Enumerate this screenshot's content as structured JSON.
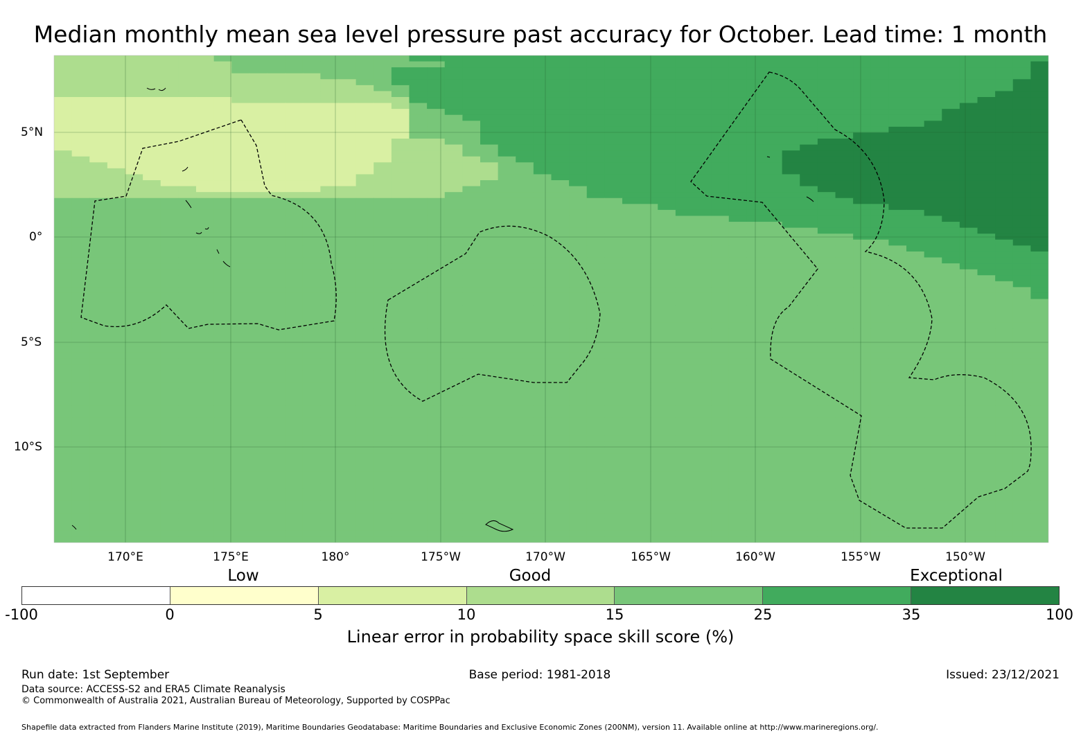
{
  "title": "Median monthly mean sea level pressure past accuracy for October. Lead time: 1 month",
  "map": {
    "lon_labels": [
      "170°E",
      "175°E",
      "180°",
      "175°W",
      "170°W",
      "165°W",
      "160°W",
      "155°W",
      "150°W"
    ],
    "lat_labels": [
      "5°N",
      "0°",
      "5°S",
      "10°S"
    ],
    "palette": {
      "0": "#ffffff",
      "1": "#ffffcc",
      "2": "#d9f0a3",
      "3": "#addd8e",
      "4": "#78c679",
      "5": "#41ab5d",
      "6": "#238443"
    },
    "grid_rows": [
      "33333333344444444444555555555555555555555555555555555555",
      "33333333334444444444445555555555555555555555555555555556",
      "33333333334444444445555555555555555555555555555555555556",
      "33333333333333344445555555555555555555555555555555555556",
      "33333333333333333445555555555555555555555555555555555566",
      "33333333333333333344555555555555555555555555555555555566",
      "33333333333333333334555555555555555555555555555555555666",
      "22222222223333333333555555555555555555555555555555556666",
      "22222222222222222223455555555555555555555555555555566666",
      "22222222222222222222445555555555555555555555555555666666",
      "22222222222222222222444555555555555555555555555555666666",
      "22222222222222222222444455555555555555555555555556666666",
      "22222222222222222222444455555555555555555555555666666666",
      "22222222222222222222444455555555555555555555566666666666",
      "22222222222222222223334455555555555555555556666666666666",
      "22222222222222222223333445555555555555555566666666666666",
      "32222222222222222223333445555555555555555666666666666666",
      "33222222222222222223333344555555555555555666666666666666",
      "33322222222222222233333334455555555555555666666666666666",
      "33332222222222222233333334455555555555555666666666666666",
      "33333222222222222333333334445555555555555566666666666666",
      "33333322222222222333333344444555555555555566666666666666",
      "33333333222222233333333444444455555555555556666666666666",
      "33333333333333333333334444444455555555555555666666666666",
      "44444444444444444444444444444444555555555555566666666666",
      "44444444444444444444444444444444445555555555555666666666",
      "44444444444444444444444444444444444555555555555556666666",
      "44444444444444444444444444444444444444555555555555666666",
      "44444444444444444444444444444444444444444555555555566666",
      "44444444444444444444444444444444444444444445555555556666",
      "44444444444444444444444444444444444444444444455555555666",
      "44444444444444444444444444444444444444444444444555555566",
      "44444444444444444444444444444444444444444444444455555556",
      "44444444444444444444444444444444444444444444444445555555",
      "44444444444444444444444444444444444444444444444444555555",
      "44444444444444444444444444444444444444444444444444455555",
      "44444444444444444444444444444444444444444444444444445555",
      "44444444444444444444444444444444444444444444444444444555",
      "44444444444444444444444444444444444444444444444444444455",
      "44444444444444444444444444444444444444444444444444444445",
      "44444444444444444444444444444444444444444444444444444445",
      "44444444444444444444444444444444444444444444444444444444",
      "44444444444444444444444444444444444444444444444444444444",
      "44444444444444444444444444444444444444444444444444444444",
      "44444444444444444444444444444444444444444444444444444444",
      "44444444444444444444444444444444444444444444444444444444",
      "44444444444444444444444444444444444444444444444444444444",
      "44444444444444444444444444444444444444444444444444444444",
      "44444444444444444444444444444444444444444444444444444444",
      "44444444444444444444444444444444444444444444444444444444",
      "44444444444444444444444444444444444444444444444444444444",
      "44444444444444444444444444444444444444444444444444444444",
      "44444444444444444444444444444444444444444444444444444444",
      "44444444444444444444444444444444444444444444444444444444",
      "44444444444444444444444444444444444444444444444444444444",
      "44444444444444444444444444444444444444444444444444444444",
      "44444444444444444444444444444444444444444444444444444444",
      "44444444444444444444444444444444444444444444444444444444",
      "44444444444444444444444444444444444444444444444444444444",
      "44444444444444444444444444444444444444444444444444444444",
      "44444444444444444444444444444444444444444444444444444444",
      "44444444444444444444444444444444444444444444444444444444",
      "44444444444444444444444444444444444444444444444444444444",
      "44444444444444444444444444444444444444444444444444444444",
      "44444444444444444444444444444444444444444444444444444444",
      "44444444444444444444444444444444444444444444444444444444",
      "44444444444444444444444444444444444444444444444444444444",
      "44444444444444444444444444444444444444444444444444444444",
      "44444444444444444444444444444444444444444444444444444444",
      "44444444444444444444444444444444444444444444444444444444",
      "44444444444444444444444444444444444444444444444444444444",
      "44444444444444444444444444444444444444444444444444444444",
      "44444444444444444444444444444444444444444444444444444444",
      "44444444444444444444444444444444444444444444444444444444",
      "44444444444444444444444444444444444444444444444444444444",
      "44444444444444444444444444444444444444444444444444444444",
      "44444444444444444444444444444444444444444444444444444444",
      "44444444444444444444444444444444444444444444444444444444",
      "44444444444444444444444444444444444444444444444444444444",
      "44444444444444444444444444444444444444444444444444444444",
      "44444444444444444444444444444444444444444444444444444444",
      "44444444444444444444444444444444444444444444444444444444"
    ]
  },
  "legend": {
    "categories": [
      "Low",
      "Good",
      "Exceptional"
    ],
    "ticks": [
      "-100",
      "0",
      "5",
      "10",
      "15",
      "25",
      "35",
      "100"
    ],
    "colors": [
      "#ffffff",
      "#ffffcc",
      "#d9f0a3",
      "#addd8e",
      "#78c679",
      "#41ab5d",
      "#238443"
    ],
    "title": "Linear error in probability space skill score (%)"
  },
  "footer": {
    "run_date": "Run date: 1st September",
    "base_period": "Base period: 1981-2018",
    "issued": "Issued: 23/12/2021",
    "data_source": "Data source: ACCESS-S2 and ERA5 Climate Reanalysis",
    "copyright": "© Commonwealth of Australia 2021, Australian Bureau of Meteorology, Supported by COSPPac",
    "shapefile": "Shapefile data extracted from Flanders Marine Institute (2019), Maritime Boundaries Geodatabase: Maritime Boundaries and Exclusive Economic Zones (200NM), version 11. Available online at http://www.marineregions.org/."
  }
}
